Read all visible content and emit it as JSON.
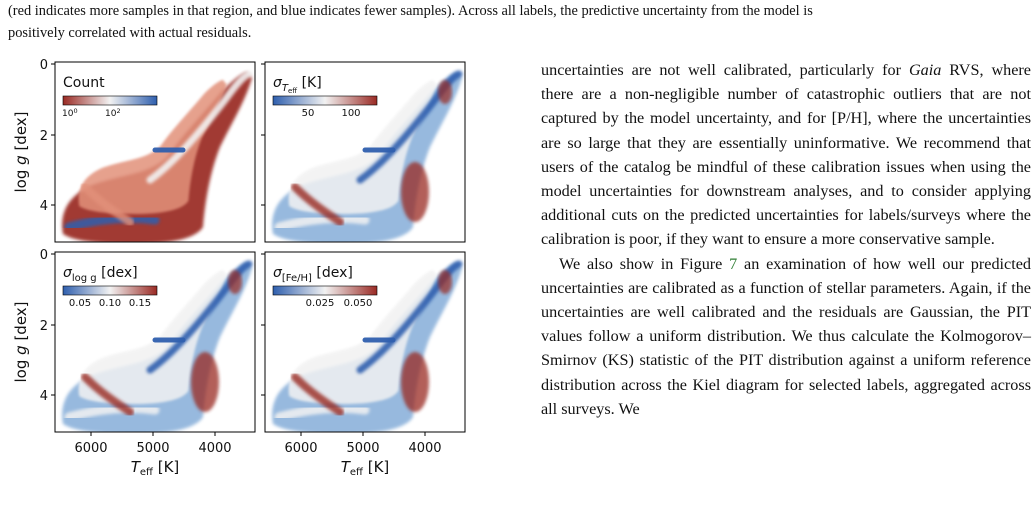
{
  "caption": {
    "line1": "(red indicates more samples in that region, and blue indicates fewer samples). Across all labels, the predictive uncertainty from the model is",
    "line2": "positively correlated with actual residuals."
  },
  "body": {
    "p1_start": "uncertainties are not well calibrated, particularly for ",
    "p1_gaia": "Gaia",
    "p1_rest": " RVS, where there are a non-negligible number of catastrophic outliers that are not captured by the model uncertainty, and for [P/H], where the uncertainties are so large that they are essentially uninformative. We recommend that users of the catalog be mindful of these calibration issues when using the model uncertainties for downstream analyses, and to consider applying additional cuts on the predicted uncertainties for labels/surveys where the calibration is poor, if they want to ensure a more conservative sample.",
    "p2_start": "We also show in Figure ",
    "p2_ref": "7",
    "p2_rest": " an examination of how well our predicted uncertainties are calibrated as a function of stellar parameters. Again, if the uncertainties are well calibrated and the residuals are Gaussian, the PIT values follow a uniform distribution. We thus calculate the Kolmogorov–Smirnov (KS) statistic of the PIT distribution against a uniform reference distribution across the Kiel diagram for selected labels, aggregated across all surveys. We"
  },
  "figure": {
    "axis_labels": {
      "ylabel_main": "log ",
      "ylabel_var": "g",
      "ylabel_unit": " [dex]",
      "xlabel_var": "T",
      "xlabel_sub": "eff",
      "xlabel_unit": " [K]"
    },
    "y_ticks": [
      "0",
      "2",
      "4"
    ],
    "x_ticks": [
      "6000",
      "5000",
      "4000"
    ],
    "panels": [
      {
        "title_main": "Count",
        "title_sub": "",
        "title_unit": "",
        "colormap": "reversed",
        "colorbar_ticks": [
          "10",
          "10"
        ],
        "colorbar_tick_exponents": [
          "0",
          "2"
        ]
      },
      {
        "title_main": "σ",
        "title_sub": "T",
        "title_subsub": "eff",
        "title_unit": " [K]",
        "colormap": "diverging",
        "colorbar_ticks": [
          "50",
          "100"
        ]
      },
      {
        "title_main": "σ",
        "title_sub": "log g",
        "title_unit": " [dex]",
        "colormap": "diverging",
        "colorbar_ticks": [
          "0.05",
          "0.10",
          "0.15"
        ]
      },
      {
        "title_main": "σ",
        "title_sub": "[Fe/H]",
        "title_unit": " [dex]",
        "colormap": "diverging",
        "colorbar_ticks": [
          "0.025",
          "0.050"
        ]
      }
    ],
    "colors": {
      "deep_blue": "#2f5fae",
      "light_blue": "#8fb4dc",
      "white": "#f2f2f2",
      "light_red": "#e2917a",
      "deep_red": "#9a2a24"
    }
  }
}
